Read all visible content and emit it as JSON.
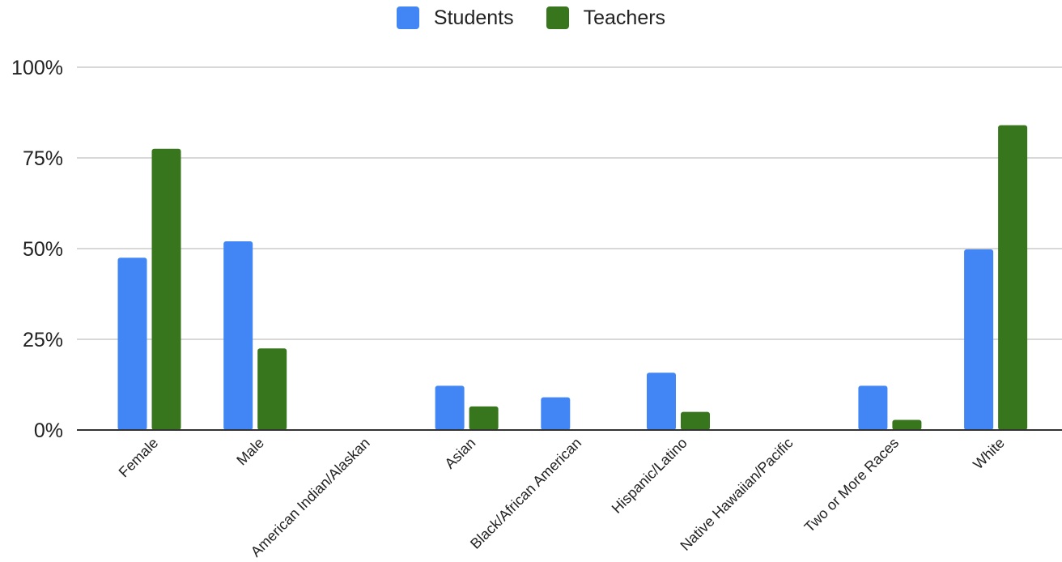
{
  "chart_data": {
    "type": "bar",
    "categories": [
      "Female",
      "Male",
      "American Indian/Alaskan",
      "Asian",
      "Black/African American",
      "Hispanic/Latino",
      "Native Hawaiian/Pacific",
      "Two or More Races",
      "White"
    ],
    "series": [
      {
        "name": "Students",
        "color": "#4285f4",
        "values": [
          47.5,
          52,
          0.2,
          12.2,
          9,
          15.8,
          0.2,
          12.2,
          49.8
        ]
      },
      {
        "name": "Teachers",
        "color": "#38761d",
        "values": [
          77.5,
          22.5,
          0.2,
          6.5,
          0.2,
          5,
          0.2,
          2.8,
          84
        ]
      }
    ],
    "yticks": [
      "0%",
      "25%",
      "50%",
      "75%",
      "100%"
    ],
    "ylim": [
      0,
      100
    ],
    "grid": true,
    "legend_position": "top-center"
  }
}
